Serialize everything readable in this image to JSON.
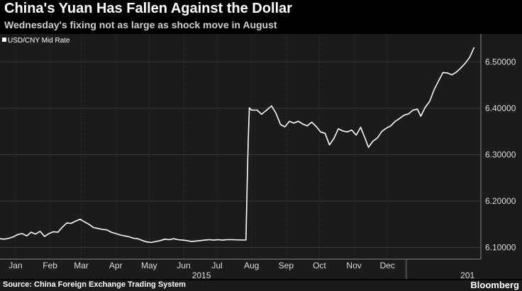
{
  "chart_data": {
    "type": "line",
    "title": "China's Yuan Has Fallen Against the Dollar",
    "subtitle": "Wednesday's fixing not as large as shock move in August",
    "series": [
      {
        "name": "USD/CNY Mid Rate",
        "points": [
          [
            "2015-01-01",
            6.119
          ],
          [
            "2015-01-05",
            6.118
          ],
          [
            "2015-01-09",
            6.12
          ],
          [
            "2015-01-13",
            6.123
          ],
          [
            "2015-01-17",
            6.128
          ],
          [
            "2015-01-21",
            6.13
          ],
          [
            "2015-01-25",
            6.125
          ],
          [
            "2015-01-29",
            6.133
          ],
          [
            "2015-02-02",
            6.129
          ],
          [
            "2015-02-06",
            6.135
          ],
          [
            "2015-02-10",
            6.124
          ],
          [
            "2015-02-14",
            6.13
          ],
          [
            "2015-02-18",
            6.134
          ],
          [
            "2015-02-22",
            6.133
          ],
          [
            "2015-02-26",
            6.144
          ],
          [
            "2015-03-02",
            6.153
          ],
          [
            "2015-03-06",
            6.152
          ],
          [
            "2015-03-10",
            6.157
          ],
          [
            "2015-03-14",
            6.161
          ],
          [
            "2015-03-18",
            6.155
          ],
          [
            "2015-03-22",
            6.15
          ],
          [
            "2015-03-26",
            6.143
          ],
          [
            "2015-03-30",
            6.141
          ],
          [
            "2015-04-03",
            6.139
          ],
          [
            "2015-04-07",
            6.138
          ],
          [
            "2015-04-11",
            6.133
          ],
          [
            "2015-04-15",
            6.13
          ],
          [
            "2015-04-19",
            6.127
          ],
          [
            "2015-04-23",
            6.125
          ],
          [
            "2015-04-27",
            6.123
          ],
          [
            "2015-05-01",
            6.12
          ],
          [
            "2015-05-05",
            6.119
          ],
          [
            "2015-05-09",
            6.115
          ],
          [
            "2015-05-13",
            6.112
          ],
          [
            "2015-05-17",
            6.111
          ],
          [
            "2015-05-21",
            6.113
          ],
          [
            "2015-05-25",
            6.115
          ],
          [
            "2015-05-29",
            6.118
          ],
          [
            "2015-06-02",
            6.117
          ],
          [
            "2015-06-06",
            6.119
          ],
          [
            "2015-06-10",
            6.117
          ],
          [
            "2015-06-14",
            6.116
          ],
          [
            "2015-06-18",
            6.115
          ],
          [
            "2015-06-22",
            6.113
          ],
          [
            "2015-06-26",
            6.114
          ],
          [
            "2015-06-30",
            6.115
          ],
          [
            "2015-07-04",
            6.116
          ],
          [
            "2015-07-08",
            6.117
          ],
          [
            "2015-07-12",
            6.116
          ],
          [
            "2015-07-16",
            6.117
          ],
          [
            "2015-07-20",
            6.116
          ],
          [
            "2015-07-24",
            6.117
          ],
          [
            "2015-07-28",
            6.117
          ],
          [
            "2015-08-07",
            6.1162
          ],
          [
            "2015-08-10",
            6.1162
          ],
          [
            "2015-08-11",
            6.2298
          ],
          [
            "2015-08-12",
            6.3306
          ],
          [
            "2015-08-13",
            6.401
          ],
          [
            "2015-08-15",
            6.396
          ],
          [
            "2015-08-20",
            6.396
          ],
          [
            "2015-08-24",
            6.387
          ],
          [
            "2015-08-28",
            6.395
          ],
          [
            "2015-09-02",
            6.405
          ],
          [
            "2015-09-06",
            6.389
          ],
          [
            "2015-09-10",
            6.365
          ],
          [
            "2015-09-14",
            6.36
          ],
          [
            "2015-09-18",
            6.372
          ],
          [
            "2015-09-22",
            6.368
          ],
          [
            "2015-09-26",
            6.372
          ],
          [
            "2015-09-30",
            6.366
          ],
          [
            "2015-10-04",
            6.362
          ],
          [
            "2015-10-08",
            6.37
          ],
          [
            "2015-10-12",
            6.361
          ],
          [
            "2015-10-16",
            6.349
          ],
          [
            "2015-10-20",
            6.346
          ],
          [
            "2015-10-24",
            6.321
          ],
          [
            "2015-10-28",
            6.335
          ],
          [
            "2015-11-01",
            6.356
          ],
          [
            "2015-11-05",
            6.351
          ],
          [
            "2015-11-09",
            6.349
          ],
          [
            "2015-11-13",
            6.353
          ],
          [
            "2015-11-17",
            6.342
          ],
          [
            "2015-11-21",
            6.359
          ],
          [
            "2015-11-25",
            6.335
          ],
          [
            "2015-11-28",
            6.316
          ],
          [
            "2015-12-02",
            6.329
          ],
          [
            "2015-12-06",
            6.336
          ],
          [
            "2015-12-10",
            6.35
          ],
          [
            "2015-12-14",
            6.357
          ],
          [
            "2015-12-18",
            6.362
          ],
          [
            "2015-12-22",
            6.372
          ],
          [
            "2015-12-26",
            6.378
          ],
          [
            "2015-12-30",
            6.385
          ],
          [
            "2016-01-03",
            6.388
          ],
          [
            "2016-01-07",
            6.396
          ],
          [
            "2016-01-11",
            6.398
          ],
          [
            "2016-01-14",
            6.383
          ],
          [
            "2016-01-18",
            6.402
          ],
          [
            "2016-01-22",
            6.415
          ],
          [
            "2016-01-26",
            6.44
          ],
          [
            "2016-01-30",
            6.459
          ],
          [
            "2016-02-03",
            6.477
          ],
          [
            "2016-02-07",
            6.476
          ],
          [
            "2016-02-11",
            6.472
          ],
          [
            "2016-02-15",
            6.478
          ],
          [
            "2016-02-19",
            6.487
          ],
          [
            "2016-02-23",
            6.497
          ],
          [
            "2016-02-27",
            6.51
          ],
          [
            "2016-03-02",
            6.5314
          ]
        ]
      }
    ],
    "y_ticks": [
      "6.10000",
      "6.20000",
      "6.30000",
      "6.40000",
      "6.50000"
    ],
    "ylim": [
      6.075,
      6.56
    ],
    "x_ticks": [
      "Jan",
      "Feb",
      "Mar",
      "Apr",
      "May",
      "Jun",
      "Jul",
      "Aug",
      "Sep",
      "Oct",
      "Nov",
      "Dec"
    ],
    "x_tick_dates": [
      "2015-01-15",
      "2015-02-15",
      "2015-03-15",
      "2015-04-15",
      "2015-05-15",
      "2015-06-15",
      "2015-07-15",
      "2015-08-15",
      "2015-09-15",
      "2015-10-15",
      "2015-11-15",
      "2015-12-15"
    ],
    "x_year_labels": [
      {
        "text": "2015",
        "date": "2015-07-01"
      },
      {
        "text": "201",
        "date": "2016-02-25"
      }
    ],
    "xlim": [
      "2015-01-01",
      "2016-03-08"
    ],
    "grid": true,
    "legend": "top-left",
    "colors": {
      "background": "#000000",
      "plot_background": "#1b1b1b",
      "line": "#ffffff",
      "grid": "#3a3a3a"
    }
  },
  "footer": {
    "source": "Source: China Foreign Exchange Trading System",
    "brand": "Bloomberg"
  }
}
